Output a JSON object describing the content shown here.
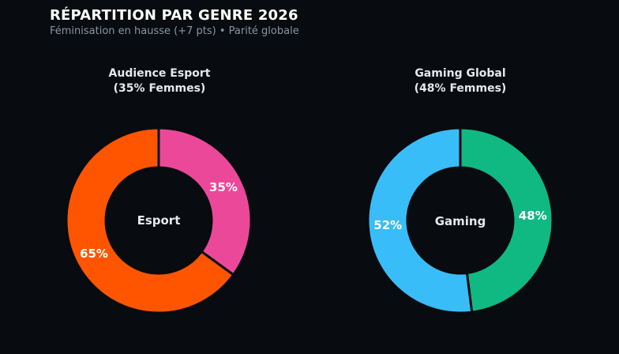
{
  "header": {
    "title": "RÉPARTITION PAR GENRE 2026",
    "subtitle": "Féminisation en hausse (+7 pts) • Parité globale"
  },
  "chart_data": [
    {
      "type": "pie",
      "title_line1": "Audience Esport",
      "title_line2": "(35% Femmes)",
      "center_label": "Esport",
      "slices": [
        {
          "label": "35%",
          "value": 35,
          "color": "#ec4899"
        },
        {
          "label": "65%",
          "value": 65,
          "color": "#ff5500"
        }
      ]
    },
    {
      "type": "pie",
      "title_line1": "Gaming Global",
      "title_line2": "(48% Femmes)",
      "center_label": "Gaming",
      "slices": [
        {
          "label": "48%",
          "value": 48,
          "color": "#10b981"
        },
        {
          "label": "52%",
          "value": 52,
          "color": "#38bdf8"
        }
      ]
    }
  ]
}
